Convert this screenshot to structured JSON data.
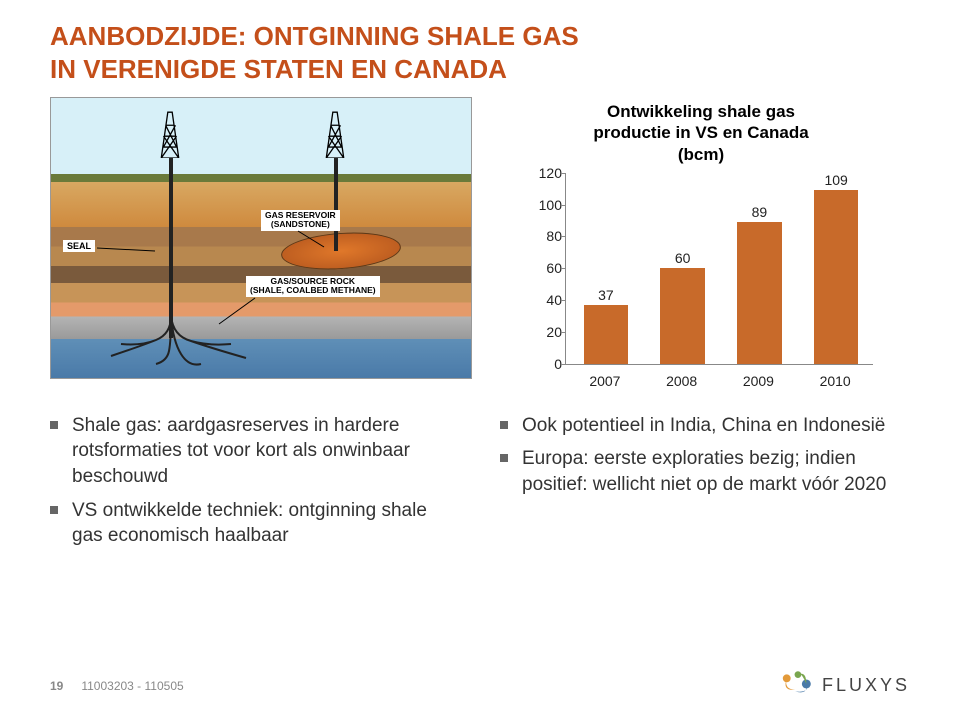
{
  "title_line1": "AANBODZIJDE: ONTGINNING SHALE GAS",
  "title_line2": "IN VERENIGDE STATEN EN CANADA",
  "diagram": {
    "seal_label": "SEAL",
    "reservoir_label_l1": "GAS RESERVOIR",
    "reservoir_label_l2": "(SANDSTONE)",
    "source_label_l1": "GAS/SOURCE ROCK",
    "source_label_l2": "(SHALE, COALBED METHANE)"
  },
  "chart": {
    "title_l1": "Ontwikkeling shale gas",
    "title_l2": "productie in VS en Canada",
    "title_l3": "(bcm)",
    "ylim": [
      0,
      120
    ],
    "ytick_step": 20,
    "categories": [
      "2007",
      "2008",
      "2009",
      "2010"
    ],
    "values": [
      37,
      60,
      89,
      109
    ],
    "bar_color": "#c86a2a",
    "axis_color": "#888888",
    "label_fontsize": 14
  },
  "bullets": {
    "left": [
      "Shale gas: aardgasreserves in hardere rotsformaties tot voor kort als onwinbaar beschouwd",
      "VS ontwikkelde techniek: ontginning shale gas economisch haalbaar"
    ],
    "right": [
      "Ook potentieel in India, China en Indonesië",
      "Europa: eerste exploraties bezig; indien positief: wellicht niet op de markt vóór 2020"
    ]
  },
  "footer": {
    "page": "19",
    "code": "11003203 - 110505",
    "brand": "FLUXYS"
  }
}
